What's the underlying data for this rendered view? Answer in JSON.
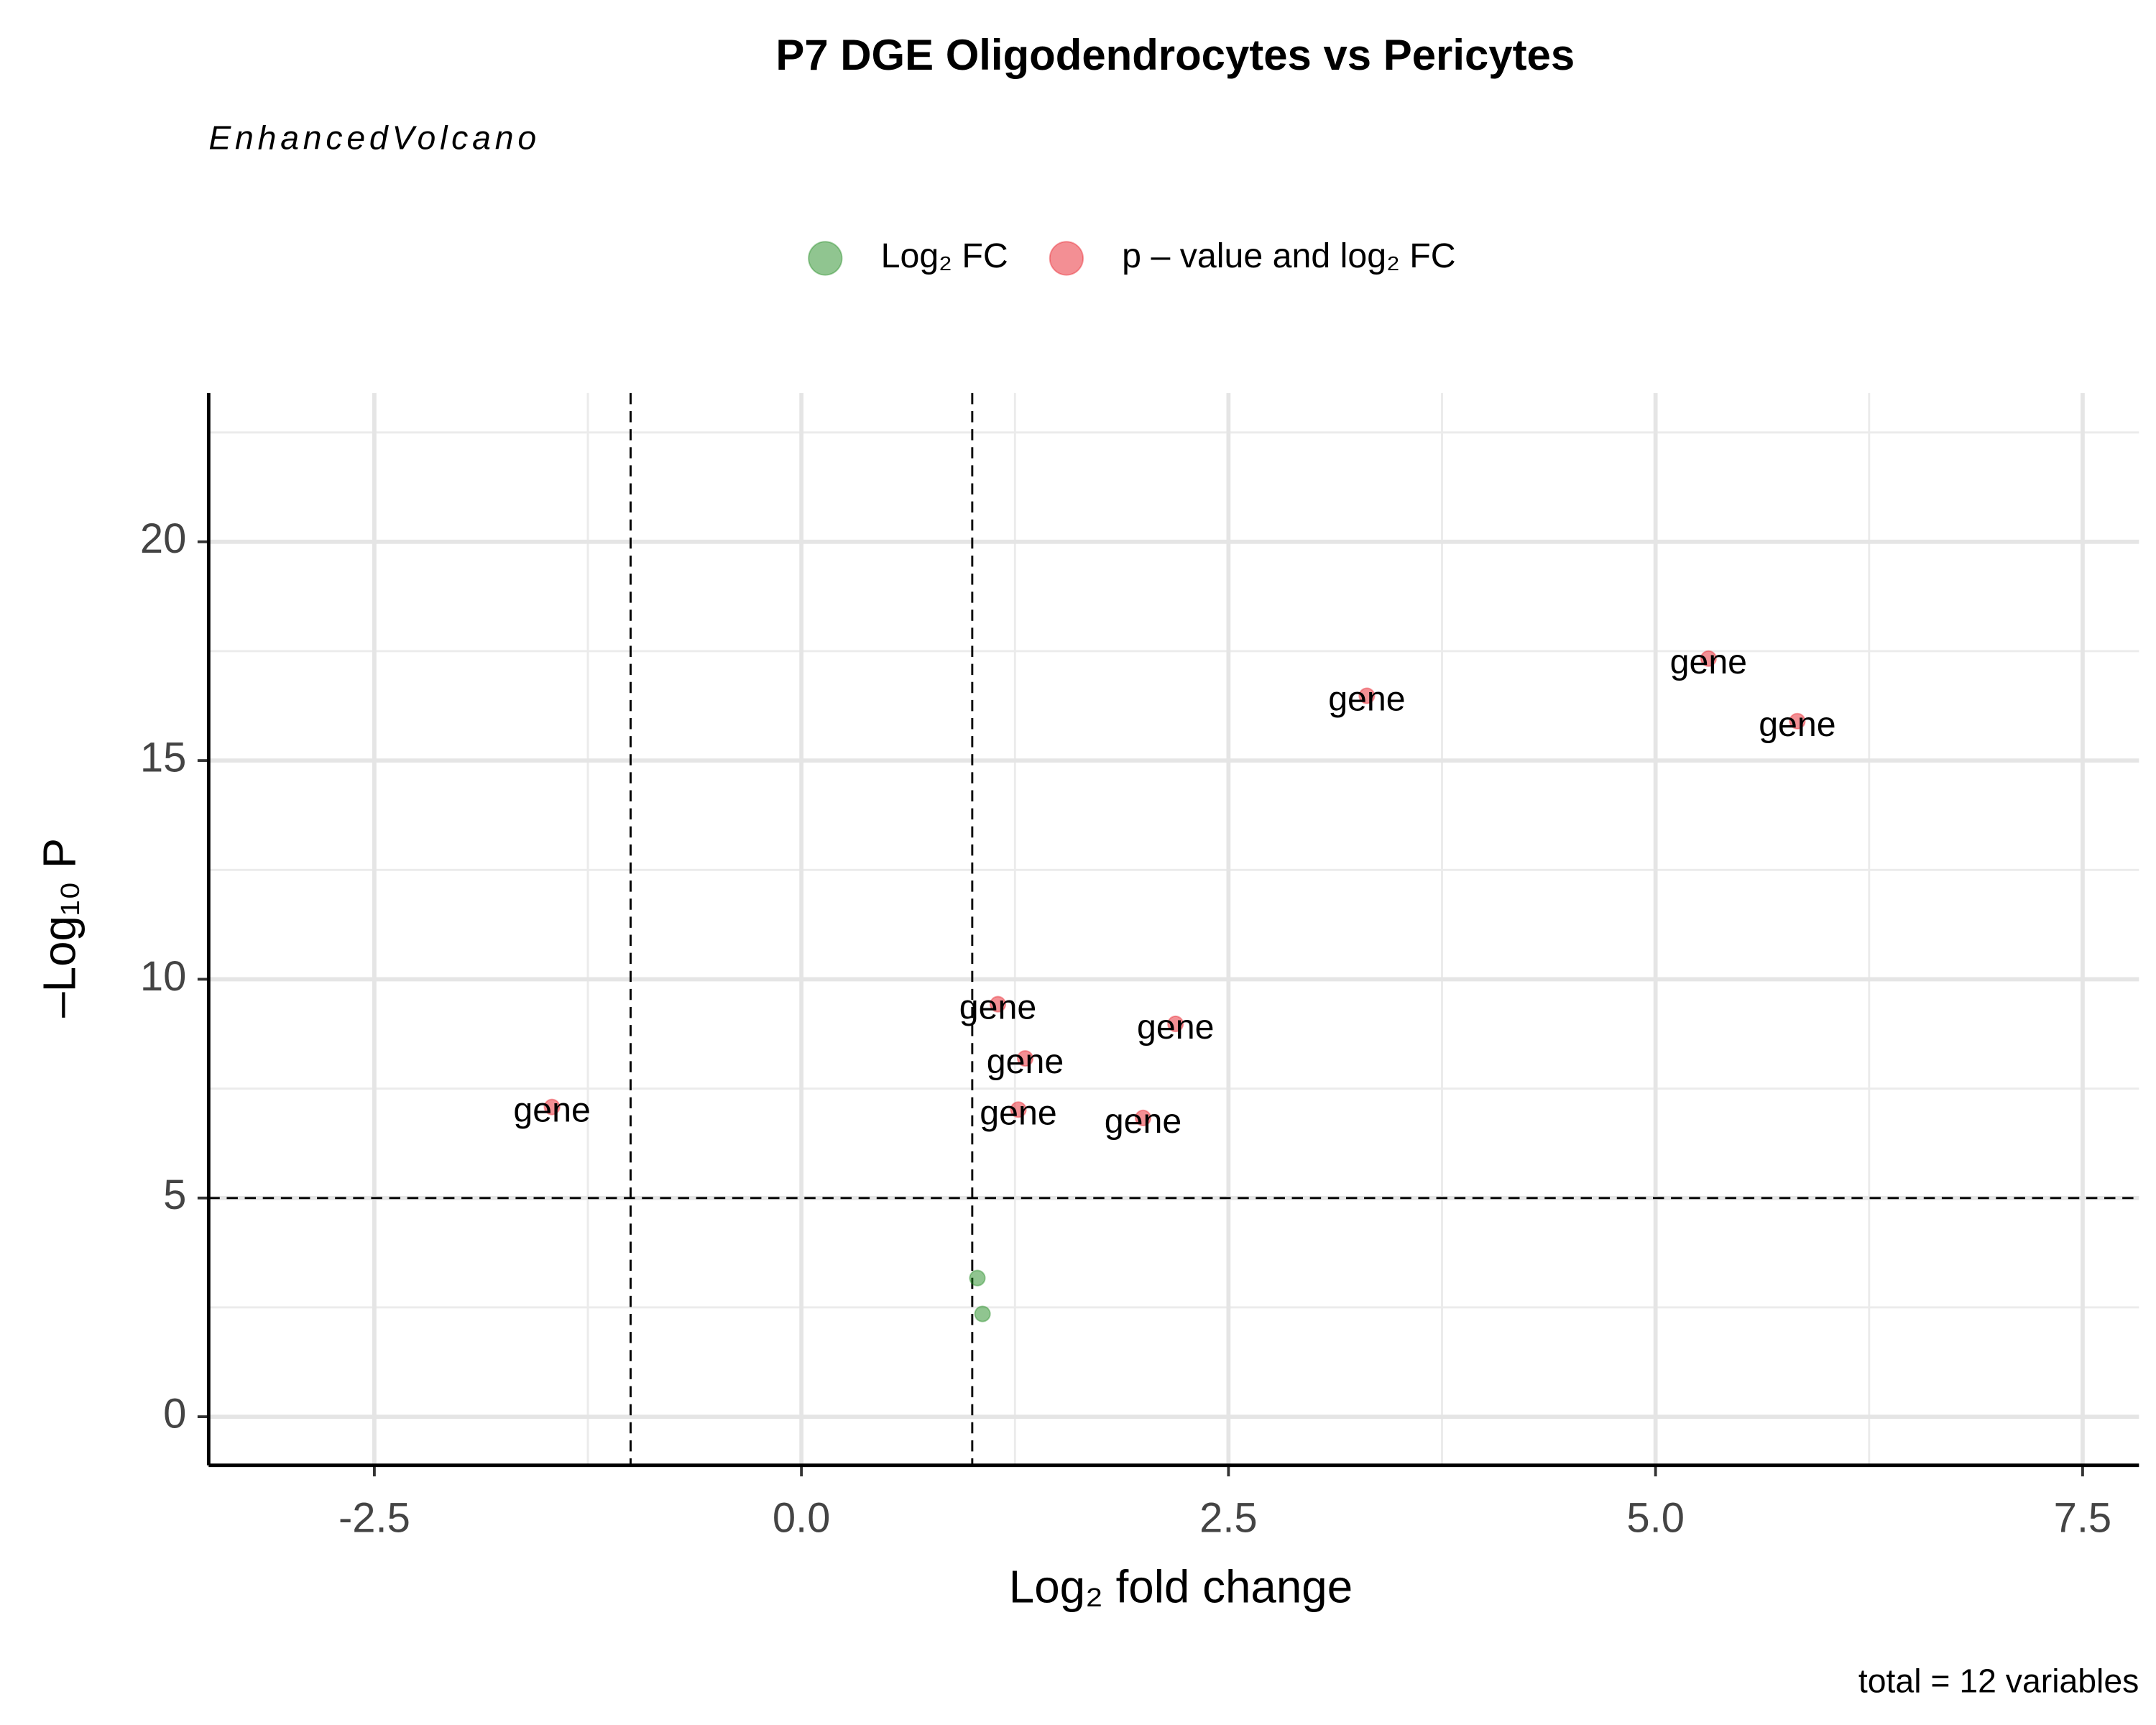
{
  "chart_data": {
    "type": "scatter",
    "title": "P7 DGE Oligodendrocytes vs Pericytes",
    "subtitle": "EnhancedVolcano",
    "caption": "total = 12 variables",
    "x_label": "Log₂ fold change",
    "y_label": "–Log₁₀ P",
    "xlim": [
      -3.47,
      7.83
    ],
    "ylim": [
      -1.11,
      23.4
    ],
    "xticks": [
      -2.5,
      {
        "value": 0,
        "label": "0.0"
      },
      2.5,
      {
        "value": 5,
        "label": "5.0"
      },
      7.5
    ],
    "yticks": [
      0,
      5,
      10,
      15,
      20
    ],
    "grid": true,
    "vlines": [
      -1,
      1
    ],
    "hlines": [
      5
    ],
    "legend": "top",
    "series": [
      {
        "name": "Log₂ FC",
        "color": "#228b22",
        "x": [
          1.03,
          1.06
        ],
        "values": [
          3.17,
          2.35
        ]
      },
      {
        "name": "p – value and log₂ FC",
        "color": "#e8202a",
        "x": [
          -1.46,
          1.15,
          1.31,
          1.27,
          2.19,
          2.0,
          3.31,
          5.31,
          5.83
        ],
        "values": [
          7.08,
          9.43,
          8.19,
          7.02,
          8.98,
          6.83,
          16.48,
          17.33,
          15.9
        ],
        "labels": [
          "gene",
          "gene",
          "gene",
          "gene",
          "gene",
          "gene",
          "gene",
          "gene",
          "gene"
        ]
      }
    ]
  }
}
